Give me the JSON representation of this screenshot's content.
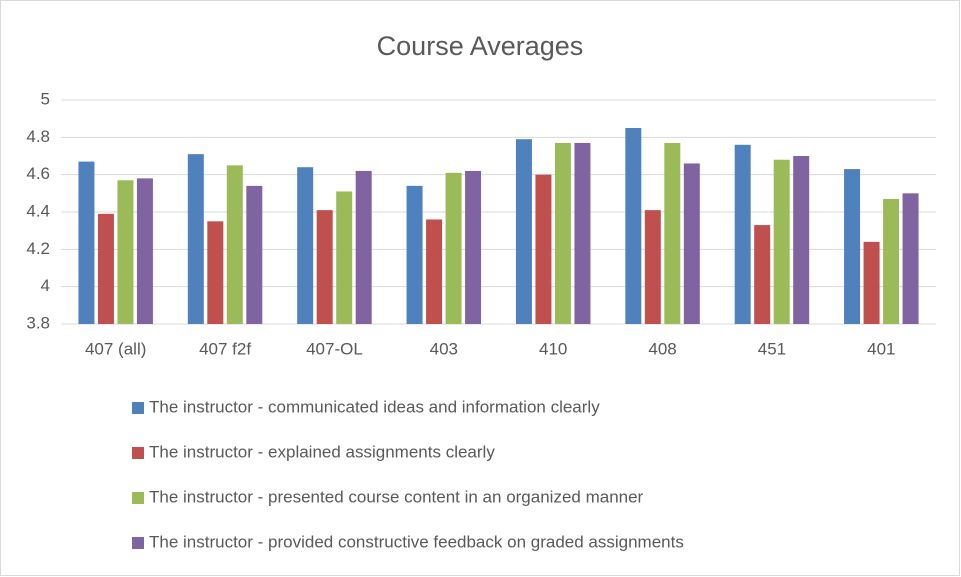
{
  "chart_data": {
    "type": "bar",
    "title": "Course Averages",
    "categories": [
      "407 (all)",
      "407 f2f",
      "407-OL",
      "403",
      "410",
      "408",
      "451",
      "401"
    ],
    "series": [
      {
        "name": "The instructor - communicated ideas and information clearly",
        "color": "#4f81bd",
        "values": [
          4.67,
          4.71,
          4.64,
          4.54,
          4.79,
          4.85,
          4.76,
          4.63
        ]
      },
      {
        "name": "The instructor - explained assignments clearly",
        "color": "#c0504d",
        "values": [
          4.39,
          4.35,
          4.41,
          4.36,
          4.6,
          4.41,
          4.33,
          4.24
        ]
      },
      {
        "name": "The instructor - presented course content in an organized manner",
        "color": "#9bbb59",
        "values": [
          4.57,
          4.65,
          4.51,
          4.61,
          4.77,
          4.77,
          4.68,
          4.47
        ]
      },
      {
        "name": "The instructor - provided constructive feedback on graded assignments",
        "color": "#8064a2",
        "values": [
          4.58,
          4.54,
          4.62,
          4.62,
          4.77,
          4.66,
          4.7,
          4.5
        ]
      }
    ],
    "ylim": [
      3.8,
      5
    ],
    "yticks": [
      3.8,
      4,
      4.2,
      4.4,
      4.6,
      4.8,
      5
    ],
    "grid": true,
    "legend": "bottom"
  }
}
